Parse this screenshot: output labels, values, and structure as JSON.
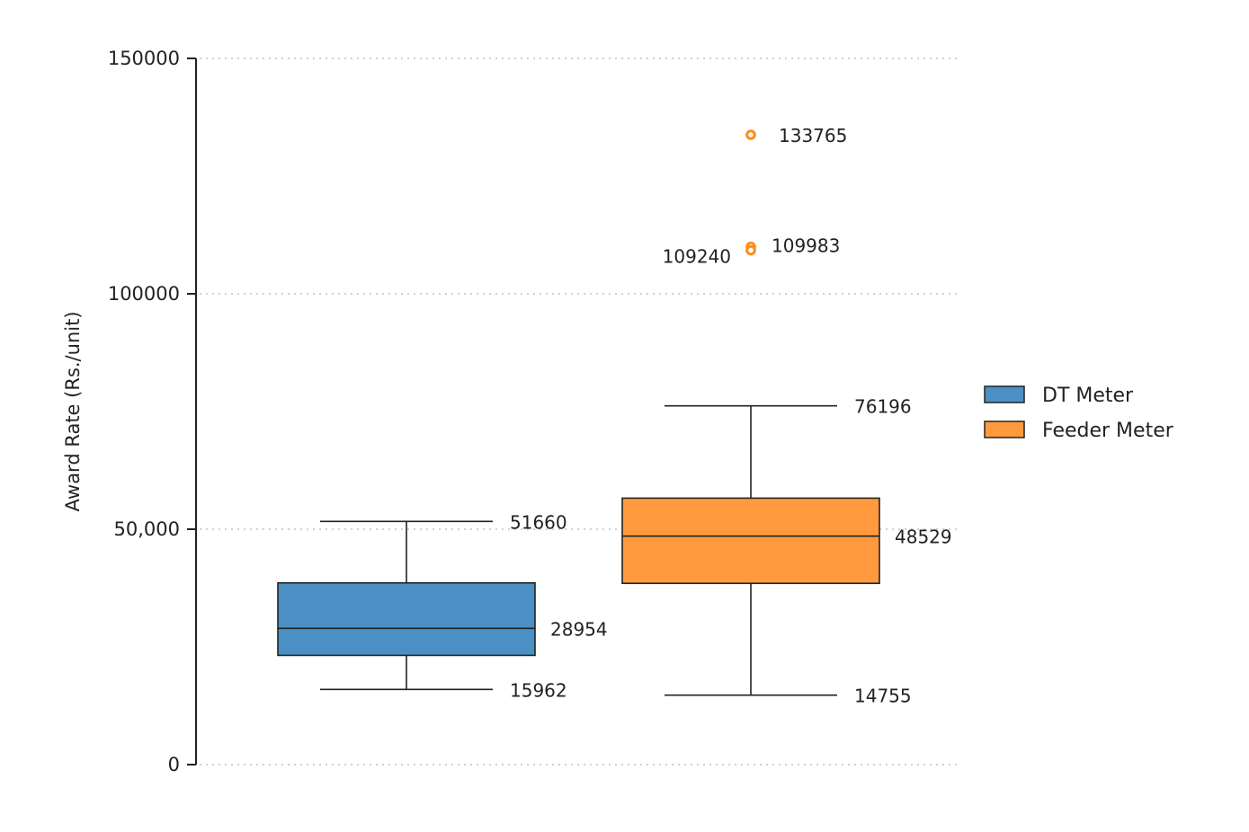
{
  "chart_data": {
    "type": "box",
    "ylabel": "Award Rate (Rs./unit)",
    "ylim": [
      0,
      150000
    ],
    "yticks": [
      {
        "value": 0,
        "label": "0"
      },
      {
        "value": 50000,
        "label": "50,000"
      },
      {
        "value": 100000,
        "label": "100000"
      },
      {
        "value": 150000,
        "label": "150000"
      }
    ],
    "grid": true,
    "legend_position": "right",
    "series": [
      {
        "name": "DT Meter",
        "color": "#4a90c4",
        "min": 15962,
        "q1": 23200,
        "median": 28954,
        "q3": 38600,
        "max": 51660,
        "outliers": [],
        "labels": {
          "max": "51660",
          "median": "28954",
          "min": "15962"
        }
      },
      {
        "name": "Feeder Meter",
        "color": "#ff9a3e",
        "min": 14755,
        "q1": 38500,
        "median": 48529,
        "q3": 56600,
        "max": 76196,
        "outliers": [
          {
            "value": 133765,
            "label": "133765"
          },
          {
            "value": 109983,
            "label": "109983"
          },
          {
            "value": 109240,
            "label": "109240"
          }
        ],
        "labels": {
          "max": "76196",
          "median": "48529",
          "min": "14755"
        }
      }
    ]
  },
  "colors": {
    "outlier_stroke": "#ff8c1a"
  }
}
